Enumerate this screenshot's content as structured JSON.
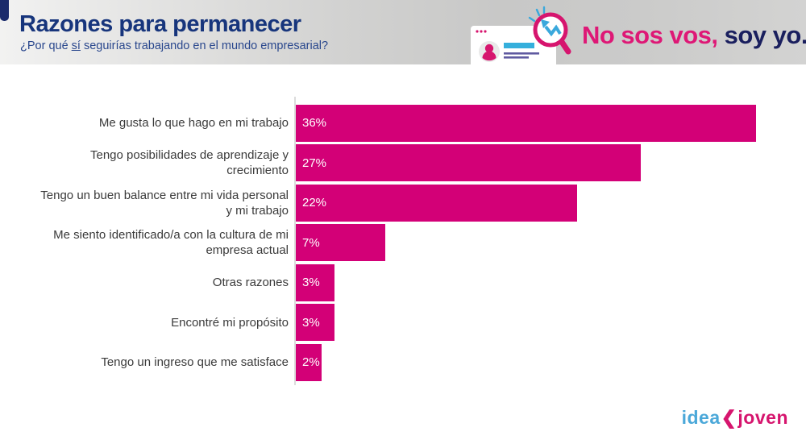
{
  "header": {
    "title": "Razones para permanecer",
    "subtitle": {
      "prefix": "¿Por qué ",
      "underlined": "sí",
      "suffix": " seguirías trabajando en el mundo empresarial?"
    },
    "tagline": {
      "pink_part": "No sos vos,",
      "navy_part": " soy yo."
    }
  },
  "chart_data": {
    "type": "bar",
    "orientation": "horizontal",
    "title": "Razones para permanecer",
    "categories": [
      "Me gusta lo que hago en mi trabajo",
      "Tengo posibilidades de aprendizaje y crecimiento",
      "Tengo un buen balance entre mi vida personal y mi trabajo",
      "Me siento identificado/a con la cultura de mi empresa actual",
      "Otras razones",
      "Encontré mi propósito",
      "Tengo un ingreso que me satisface"
    ],
    "values": [
      36,
      27,
      22,
      7,
      3,
      3,
      2
    ],
    "value_labels": [
      "36%",
      "27%",
      "22%",
      "7%",
      "3%",
      "3%",
      "2%"
    ],
    "unit": "%",
    "xlim": [
      0,
      37.5
    ],
    "grid": false,
    "legend": false,
    "bar_color": "#d30077",
    "value_label_color": "#ffffff"
  },
  "footer": {
    "logo_part1": "idea",
    "logo_part2": "joven"
  },
  "colors": {
    "bar": "#d30077",
    "title_navy": "#17357c",
    "subtitle_blue": "#29478d",
    "tagline_pink": "#de1876",
    "tagline_navy": "#1a1f5e",
    "logo_blue": "#4ba8d9",
    "logo_pink": "#d6156e",
    "axis_gray": "#dcdcdc",
    "label_text": "#3a3a3a",
    "header_gradient_left": "#f2f2f1",
    "header_gradient_right": "#d3d3d2"
  }
}
